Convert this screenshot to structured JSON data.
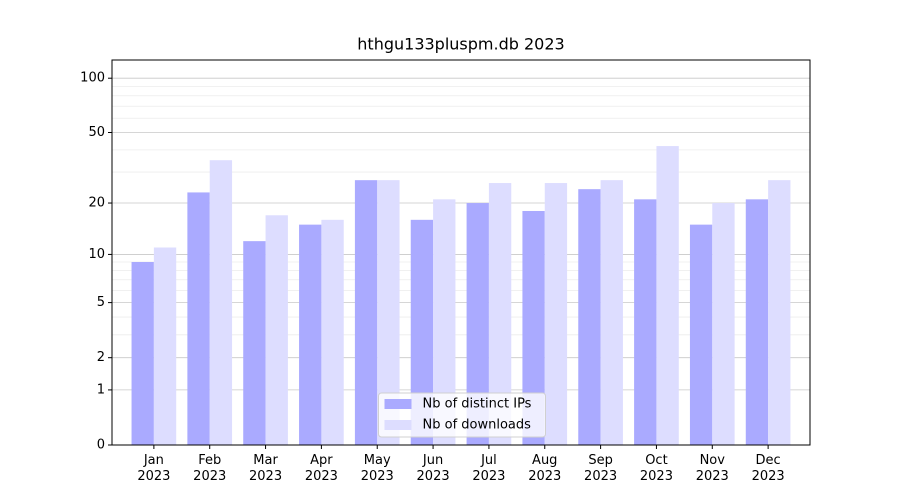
{
  "chart_data": {
    "type": "bar",
    "title": "hthgu133pluspm.db 2023",
    "categories": [
      "Jan\n2023",
      "Feb\n2023",
      "Mar\n2023",
      "Apr\n2023",
      "May\n2023",
      "Jun\n2023",
      "Jul\n2023",
      "Aug\n2023",
      "Sep\n2023",
      "Oct\n2023",
      "Nov\n2023",
      "Dec\n2023"
    ],
    "series": [
      {
        "name": "Nb of distinct IPs",
        "color": "#aaaaff",
        "values": [
          9,
          23,
          12,
          15,
          27,
          16,
          20,
          18,
          24,
          21,
          15,
          21
        ]
      },
      {
        "name": "Nb of downloads",
        "color": "#ddddff",
        "values": [
          11,
          35,
          17,
          16,
          27,
          21,
          26,
          26,
          27,
          42,
          20,
          27
        ]
      }
    ],
    "yscale": "log1p",
    "ylim": [
      0,
      126
    ],
    "yticks": [
      0,
      1,
      2,
      5,
      10,
      20,
      50,
      100
    ],
    "yminor": [
      3,
      4,
      6,
      7,
      8,
      9,
      30,
      40,
      60,
      70,
      80,
      90
    ],
    "grid": true,
    "legend": "lower center"
  }
}
